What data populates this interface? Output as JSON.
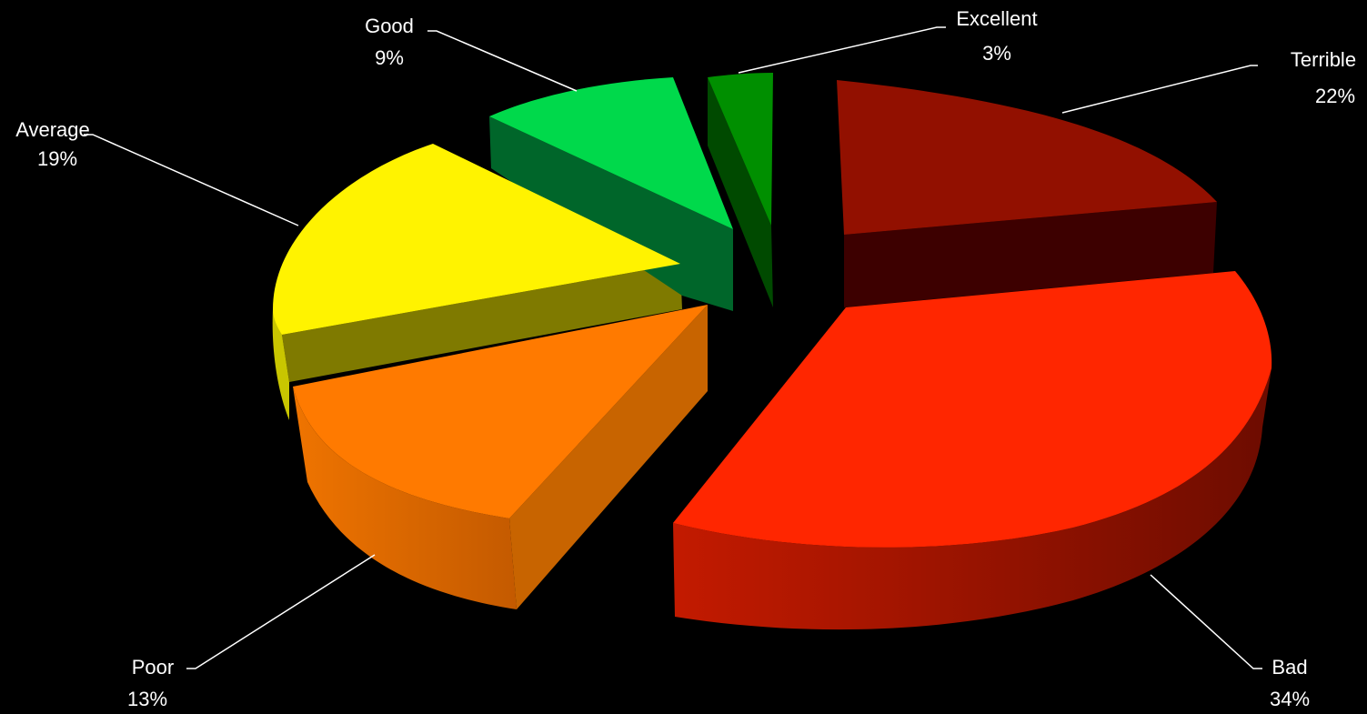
{
  "chart_data": {
    "type": "pie",
    "style": "3d-exploded",
    "title": "",
    "background": "#000000",
    "label_color": "#ffffff",
    "slices": [
      {
        "label": "Terrible",
        "percent": "22%",
        "value": 22,
        "color": "#921000"
      },
      {
        "label": "Bad",
        "percent": "34%",
        "value": 34,
        "color": "#ff2600"
      },
      {
        "label": "Poor",
        "percent": "13%",
        "value": 13,
        "color": "#ff7a00"
      },
      {
        "label": "Average",
        "percent": "19%",
        "value": 19,
        "color": "#fff300"
      },
      {
        "label": "Good",
        "percent": "9%",
        "value": 9,
        "color": "#00d94b"
      },
      {
        "label": "Excellent",
        "percent": "3%",
        "value": 3,
        "color": "#008f00"
      }
    ]
  }
}
